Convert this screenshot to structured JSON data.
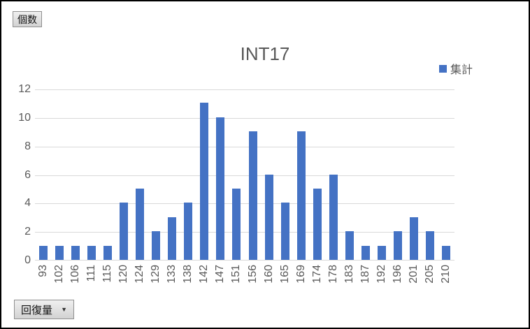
{
  "buttons": {
    "values_field": {
      "label": "個数"
    },
    "axis_field": {
      "label": "回復量",
      "dropdown_icon": "▼"
    }
  },
  "chart_data": {
    "type": "bar",
    "title": "INT17",
    "categories": [
      "93",
      "102",
      "106",
      "111",
      "115",
      "120",
      "124",
      "129",
      "133",
      "138",
      "142",
      "147",
      "151",
      "156",
      "160",
      "165",
      "169",
      "174",
      "178",
      "183",
      "187",
      "192",
      "196",
      "201",
      "205",
      "210"
    ],
    "series": [
      {
        "name": "集計",
        "values": [
          1,
          1,
          1,
          1,
          1,
          4,
          5,
          2,
          3,
          4,
          11,
          10,
          5,
          9,
          6,
          4,
          9,
          5,
          6,
          2,
          1,
          1,
          2,
          3,
          2,
          1
        ]
      }
    ],
    "xlabel": "",
    "ylabel": "",
    "ylim": [
      0,
      12
    ],
    "yticks": [
      0,
      2,
      4,
      6,
      8,
      10,
      12
    ],
    "legend": {
      "position": "top-right",
      "entries": [
        "集計"
      ]
    },
    "grid": "horizontal",
    "x_label_rotation": -90,
    "colors": {
      "bar": "#4472C4",
      "text": "#595959",
      "gridline": "#D9D9D9",
      "axis_line": "#D9D9D9"
    }
  }
}
